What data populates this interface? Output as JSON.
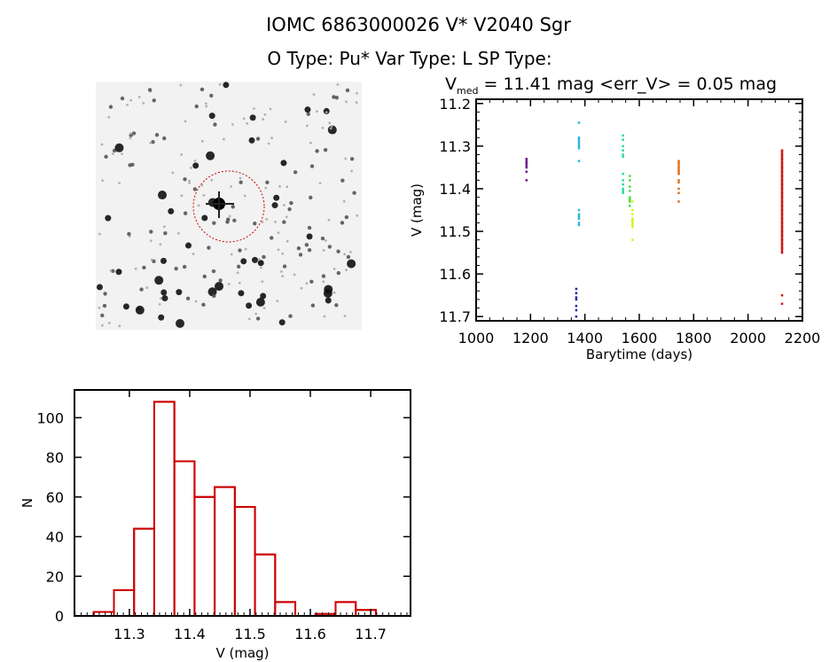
{
  "header": {
    "title": "IOMC 6863000026    V* V2040 Sgr",
    "subtitle": "O Type: Pu*  Var Type: L  SP Type:"
  },
  "colors": {
    "histogram": "#cc0000",
    "axes": "#000000",
    "background": "#ffffff",
    "aperture_circle": "#cc0000"
  },
  "chart_data": [
    {
      "type": "scatter",
      "title_parts": {
        "v": "V",
        "sub": "med",
        "rest": " = 11.41 mag <err_V> = 0.05 mag"
      },
      "xlabel": "Barytime (days)",
      "ylabel": "V (mag)",
      "xlim": [
        1000,
        2200
      ],
      "ylim": [
        11.71,
        11.19
      ],
      "y_inverted": true,
      "xticks": [
        1000,
        1200,
        1400,
        1600,
        1800,
        2000,
        2200
      ],
      "yticks": [
        11.2,
        11.3,
        11.4,
        11.5,
        11.6,
        11.7
      ],
      "ytick_labels": [
        "11.2",
        "11.3",
        "11.4",
        "11.5",
        "11.6",
        "11.7"
      ],
      "groups": [
        {
          "x": 1185,
          "color": "#6a1a8c",
          "y": [
            11.33,
            11.335,
            11.34,
            11.345,
            11.35,
            11.36,
            11.38
          ]
        },
        {
          "x": 1368,
          "color": "#1a2aa8",
          "y": [
            11.635,
            11.645,
            11.655,
            11.66,
            11.675,
            11.685,
            11.7
          ]
        },
        {
          "x": 1378,
          "color": "#2ab4dc",
          "y": [
            11.245,
            11.28,
            11.285,
            11.29,
            11.295,
            11.3,
            11.305,
            11.335,
            11.45,
            11.46,
            11.465,
            11.47,
            11.48,
            11.485
          ]
        },
        {
          "x": 1540,
          "color": "#2adca0",
          "y": [
            11.275,
            11.285,
            11.3,
            11.31,
            11.32,
            11.325,
            11.365,
            11.38,
            11.39,
            11.4,
            11.405,
            11.41
          ]
        },
        {
          "x": 1565,
          "color": "#44e040",
          "y": [
            11.37,
            11.38,
            11.395,
            11.405,
            11.42,
            11.425,
            11.43,
            11.44
          ]
        },
        {
          "x": 1575,
          "color": "#d8f020",
          "y": [
            11.43,
            11.45,
            11.46,
            11.47,
            11.475,
            11.48,
            11.485,
            11.49,
            11.52
          ]
        },
        {
          "x": 1745,
          "color": "#e07018",
          "y": [
            11.335,
            11.34,
            11.345,
            11.35,
            11.355,
            11.36,
            11.365,
            11.38,
            11.385,
            11.4,
            11.41,
            11.43
          ]
        },
        {
          "x": 2125,
          "color": "#cc1a1a",
          "y": [
            11.31,
            11.32,
            11.33,
            11.34,
            11.35,
            11.36,
            11.37,
            11.38,
            11.39,
            11.4,
            11.41,
            11.42,
            11.43,
            11.44,
            11.45,
            11.46,
            11.47,
            11.48,
            11.49,
            11.5,
            11.51,
            11.52,
            11.53,
            11.54,
            11.55,
            11.65,
            11.67
          ]
        }
      ]
    },
    {
      "type": "bar",
      "subtype": "histogram",
      "xlabel": "V (mag)",
      "ylabel": "N",
      "xlim": [
        11.209,
        11.766
      ],
      "ylim": [
        0,
        114
      ],
      "xticks": [
        11.3,
        11.4,
        11.5,
        11.6,
        11.7
      ],
      "xtick_labels": [
        "11.3",
        "11.4",
        "11.5",
        "11.6",
        "11.7"
      ],
      "yticks": [
        0,
        20,
        40,
        60,
        80,
        100
      ],
      "bin_start": 11.241,
      "bin_width": 0.0334,
      "values": [
        2,
        13,
        44,
        108,
        78,
        60,
        65,
        55,
        31,
        7,
        0,
        1,
        7,
        3
      ]
    }
  ]
}
